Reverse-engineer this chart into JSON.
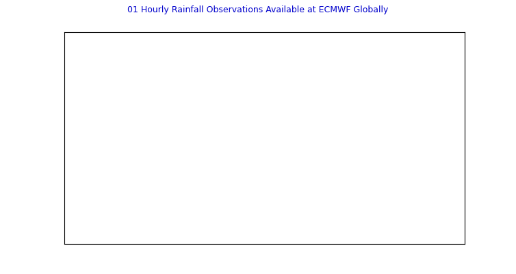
{
  "title": "01 Hourly Rainfall Observations Available at ECMWF Globally",
  "title_color": "#0000cc",
  "title_fontsize": 9,
  "map_background": "#ffffff",
  "border_color": "#000000",
  "highlight_color": "#ff0000",
  "figsize": [
    7.54,
    4.02
  ],
  "dpi": 100,
  "xlim": [
    -180,
    180
  ],
  "ylim": [
    -90,
    90
  ],
  "crosshair_lon": -20,
  "crosshair_lat": -28,
  "border_linewidth": 0.3,
  "coast_linewidth": 0.4
}
